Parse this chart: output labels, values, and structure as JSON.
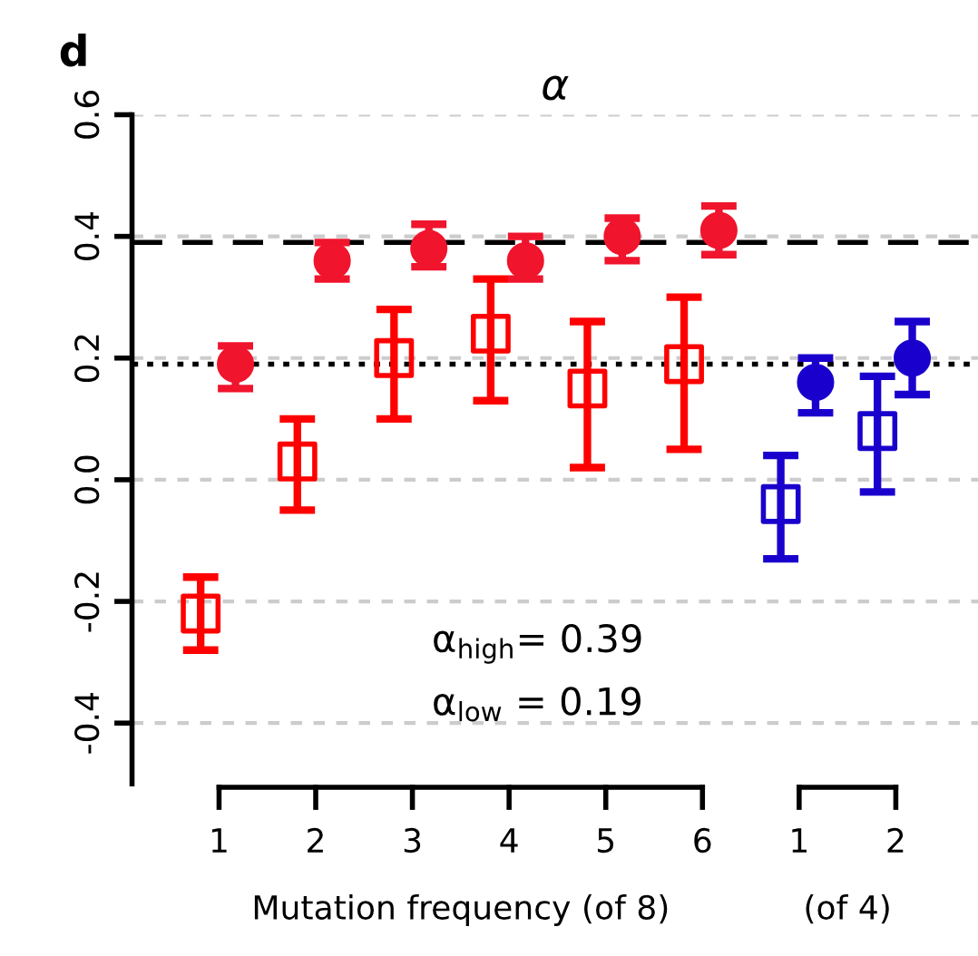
{
  "chart_data": {
    "type": "scatter",
    "title": "α",
    "categories": [
      "1",
      "2",
      "3",
      "4",
      "5",
      "6",
      "1",
      "2"
    ],
    "xlabel": "Mutation frequency (of 8)",
    "annotations": [
      "d",
      "α$_{high}$= 0.39",
      "α$_{low}$ = 0.19",
      "(of 4)"
    ],
    "ylim": [
      -0.5,
      0.6
    ],
    "yticks": [
      -0.4,
      -0.2,
      {
        "value": 0.0,
        "label": "0.0"
      },
      0.2,
      0.4,
      0.6
    ],
    "grid": "y",
    "ref_lines": [
      {
        "axis": "y",
        "value": 0.39,
        "line_style": "dashed",
        "color": "#000000"
      },
      {
        "axis": "y",
        "value": 0.19,
        "line_style": "dotted",
        "color": "#000000"
      }
    ],
    "series": [
      {
        "color": "#ff0000",
        "marker": "square",
        "values": [
          -0.22,
          0.03,
          0.2,
          0.24,
          0.15,
          0.19,
          null,
          null
        ],
        "errors": [
          [
            -0.28,
            -0.16
          ],
          [
            -0.05,
            0.1
          ],
          [
            0.1,
            0.28
          ],
          [
            0.13,
            0.33
          ],
          [
            0.02,
            0.26
          ],
          [
            0.05,
            0.3
          ],
          null,
          null
        ]
      },
      {
        "color": "#f0142d",
        "marker": "circle",
        "values": [
          0.19,
          0.36,
          0.38,
          0.36,
          0.4,
          0.41,
          null,
          null
        ],
        "errors": [
          [
            0.15,
            0.22
          ],
          [
            0.33,
            0.39
          ],
          [
            0.35,
            0.42
          ],
          [
            0.33,
            0.4
          ],
          [
            0.36,
            0.43
          ],
          [
            0.37,
            0.45
          ],
          null,
          null
        ]
      },
      {
        "color": "#1a00cc",
        "marker": "square",
        "values": [
          null,
          null,
          null,
          null,
          null,
          null,
          -0.04,
          0.08
        ],
        "errors": [
          null,
          null,
          null,
          null,
          null,
          null,
          [
            -0.13,
            0.04
          ],
          [
            -0.02,
            0.17
          ]
        ]
      },
      {
        "color": "#1a00cc",
        "marker": "circle",
        "values": [
          null,
          null,
          null,
          null,
          null,
          null,
          0.16,
          0.2
        ],
        "errors": [
          null,
          null,
          null,
          null,
          null,
          null,
          [
            0.11,
            0.2
          ],
          [
            0.14,
            0.26
          ]
        ]
      }
    ]
  }
}
